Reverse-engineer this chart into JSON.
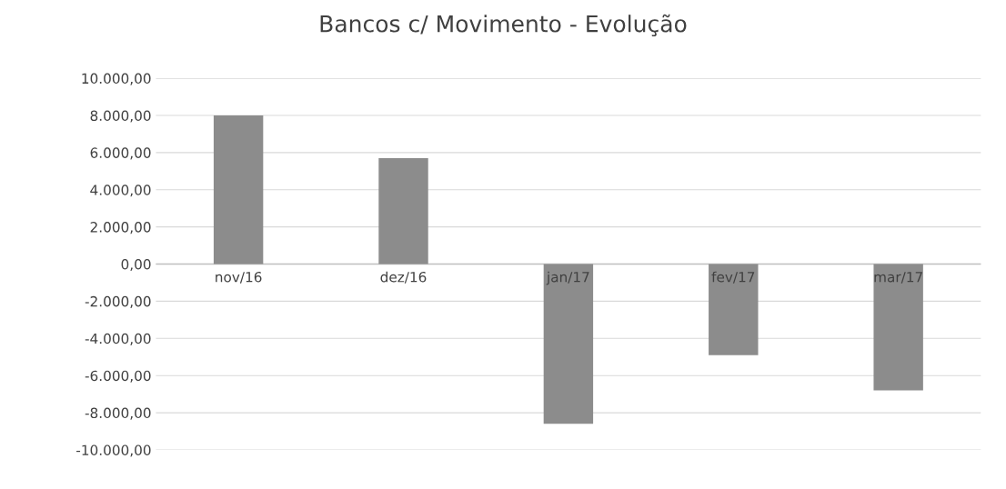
{
  "chart_data": {
    "type": "bar",
    "title": "Bancos c/ Movimento - Evolução",
    "categories": [
      "nov/16",
      "dez/16",
      "jan/17",
      "fev/17",
      "mar/17"
    ],
    "values": [
      8000,
      5700,
      -8600,
      -4900,
      -6800
    ],
    "color": "#8c8c8c",
    "ylim": [
      -10000,
      10000
    ],
    "yticks": [
      {
        "value": -10000,
        "label": "-10.000,00"
      },
      {
        "value": -8000,
        "label": "-8.000,00"
      },
      {
        "value": -6000,
        "label": "-6.000,00"
      },
      {
        "value": -4000,
        "label": "-4.000,00"
      },
      {
        "value": -2000,
        "label": "-2.000,00"
      },
      {
        "value": 0,
        "label": "0,00"
      },
      {
        "value": 2000,
        "label": "2.000,00"
      },
      {
        "value": 4000,
        "label": "4.000,00"
      },
      {
        "value": 6000,
        "label": "6.000,00"
      },
      {
        "value": 8000,
        "label": "8.000,00"
      },
      {
        "value": 10000,
        "label": "10.000,00"
      }
    ],
    "grid": "y",
    "legend": false
  }
}
